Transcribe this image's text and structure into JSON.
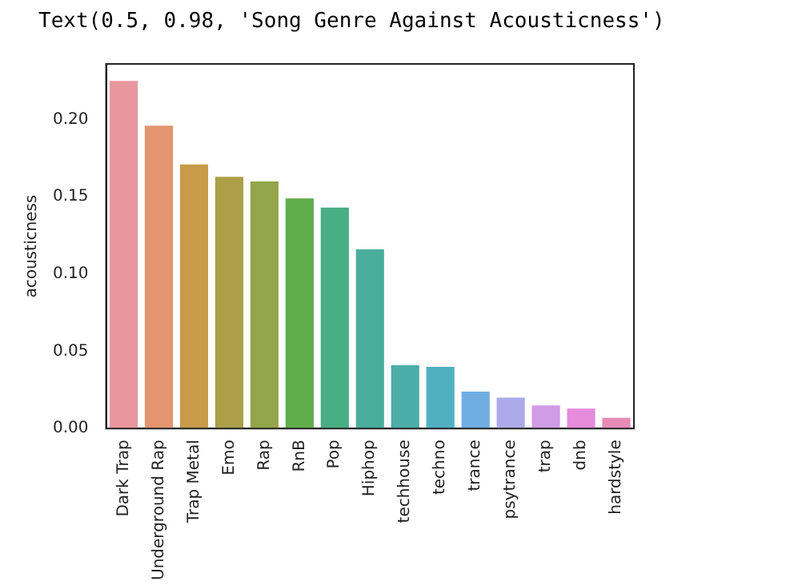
{
  "chart_data": {
    "type": "bar",
    "title": "Text(0.5, 0.98, 'Song Genre Against Acousticness')",
    "ylabel": "acousticness",
    "categories": [
      "Dark Trap",
      "Underground Rap",
      "Trap Metal",
      "Emo",
      "Rap",
      "RnB",
      "Pop",
      "Hiphop",
      "techhouse",
      "techno",
      "trance",
      "psytrance",
      "trap",
      "dnb",
      "hardstyle"
    ],
    "values": [
      0.225,
      0.196,
      0.171,
      0.163,
      0.16,
      0.149,
      0.143,
      0.116,
      0.041,
      0.04,
      0.024,
      0.02,
      0.015,
      0.013,
      0.007
    ],
    "colors": [
      "#e8979f",
      "#e3956f",
      "#c89a4a",
      "#ab9f48",
      "#94a54a",
      "#5fae4b",
      "#4aae84",
      "#4bae9c",
      "#4cada8",
      "#51afc2",
      "#6fade3",
      "#adaaea",
      "#d19ce6",
      "#e78bdc",
      "#e68ab6"
    ],
    "ylim": [
      0,
      0.236
    ],
    "yticks": [
      {
        "value": 0,
        "label": "0.00"
      },
      {
        "value": 0.05,
        "label": "0.05"
      },
      {
        "value": 0.1,
        "label": "0.10"
      },
      {
        "value": 0.15,
        "label": "0.15"
      },
      {
        "value": 0.2,
        "label": "0.20"
      }
    ],
    "grid": false,
    "legend": false
  }
}
